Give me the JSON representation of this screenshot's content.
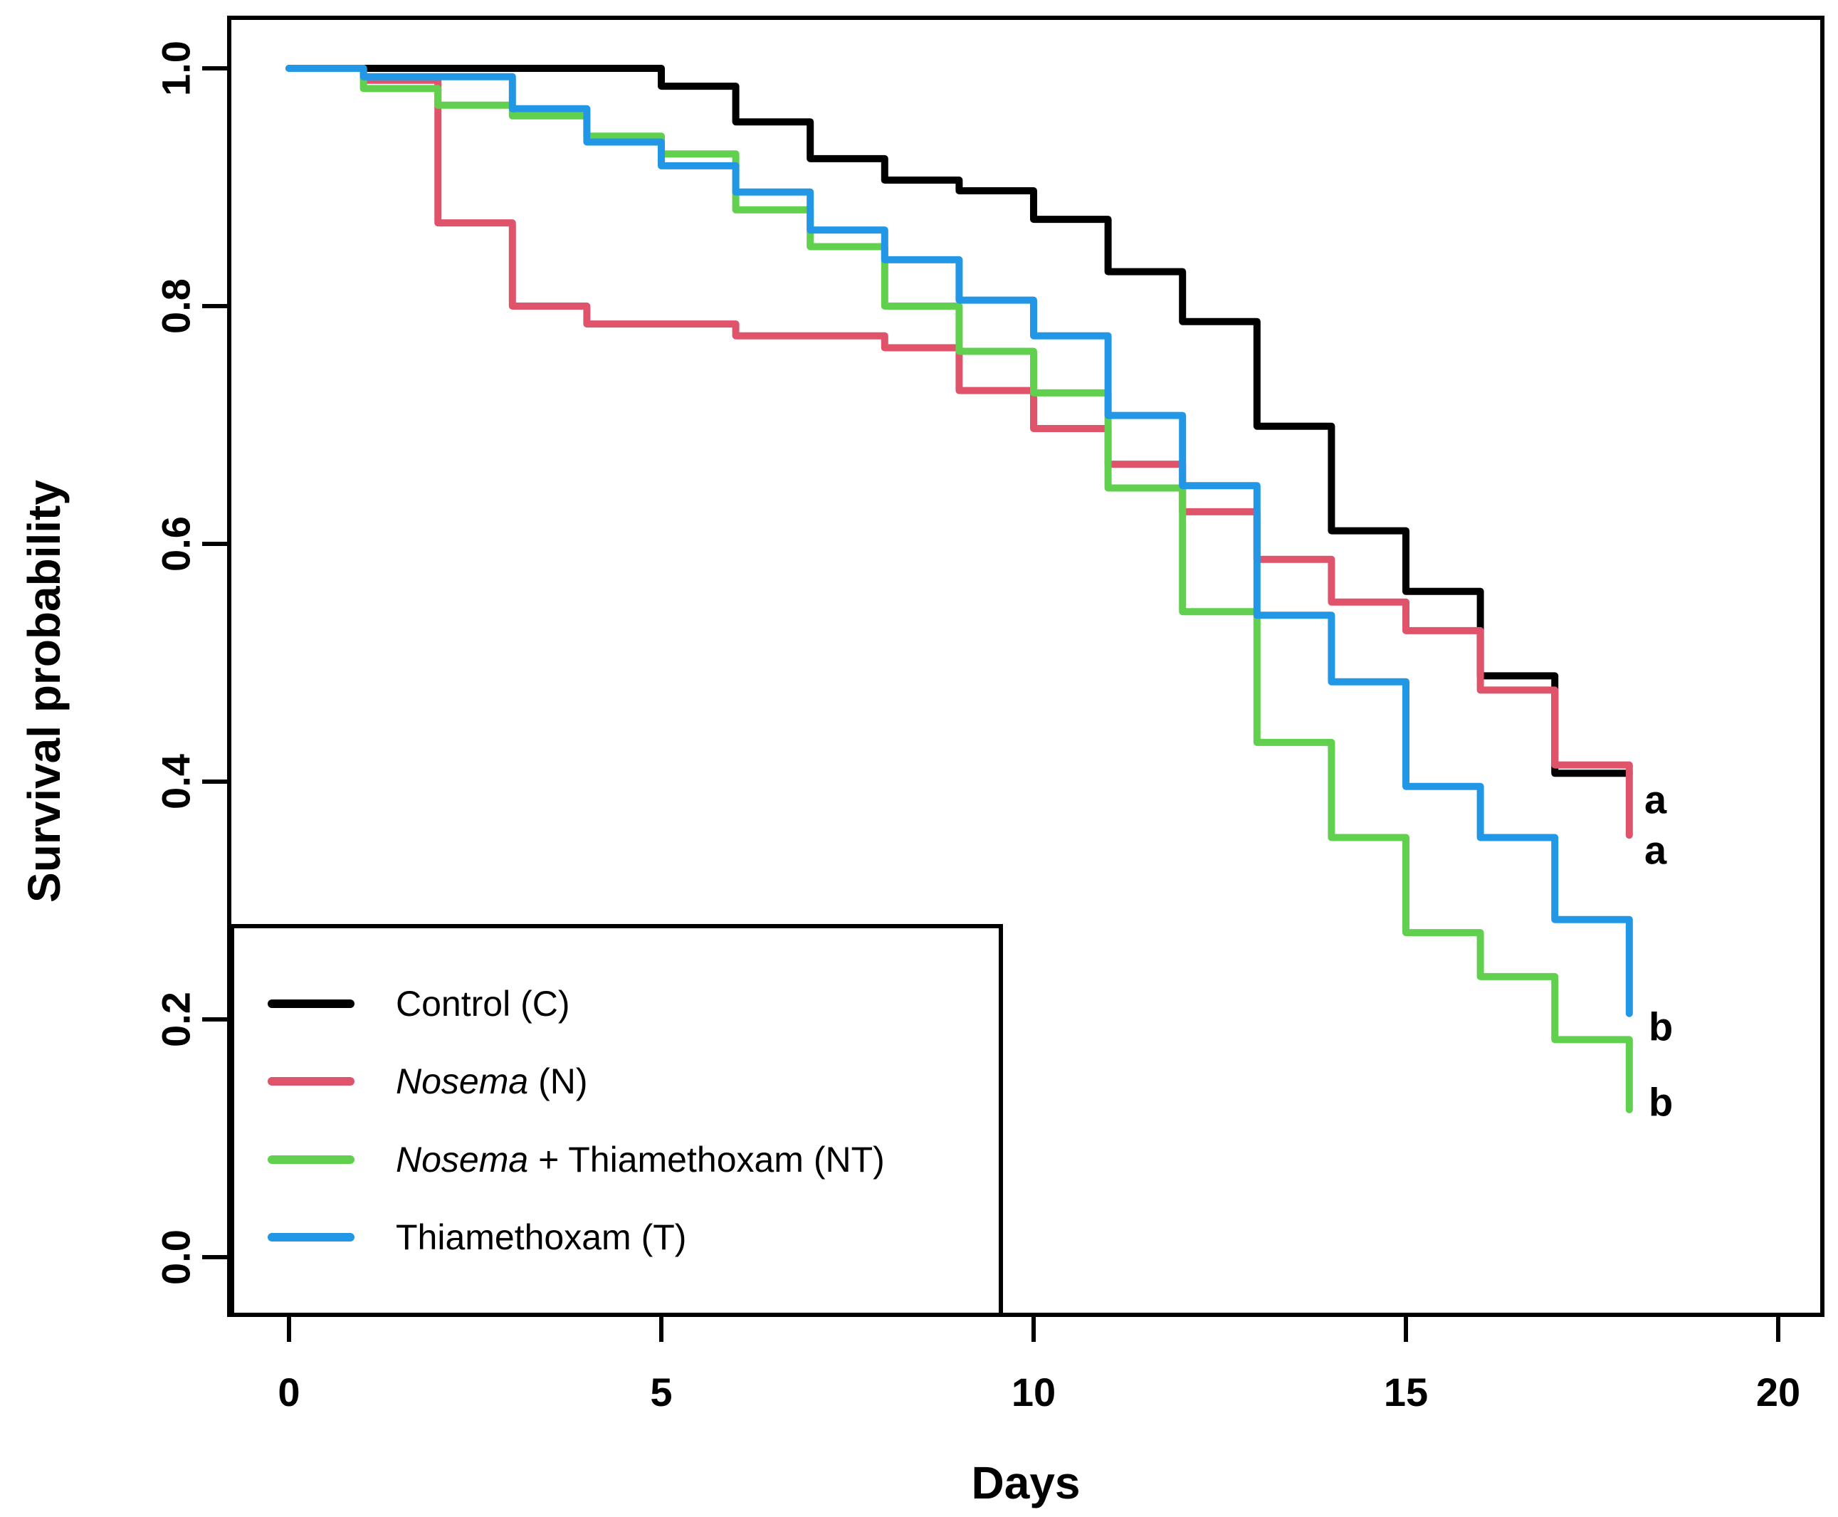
{
  "axes": {
    "x": {
      "title": "Days",
      "tick_labels": [
        "0",
        "5",
        "10",
        "15",
        "20"
      ],
      "range": [
        0,
        20
      ]
    },
    "y": {
      "title": "Survival probability",
      "tick_labels": [
        "0.0",
        "0.2",
        "0.4",
        "0.6",
        "0.8",
        "1.0"
      ],
      "range": [
        0.0,
        1.0
      ]
    }
  },
  "legend": {
    "items": [
      {
        "italic": "",
        "rest": "Control (C)",
        "color": "#000000"
      },
      {
        "italic": "Nosema",
        "rest": " (N)",
        "color": "#DF536B"
      },
      {
        "italic": "Nosema",
        "rest": " + Thiamethoxam (NT)",
        "color": "#61D04F"
      },
      {
        "italic": "",
        "rest": "Thiamethoxam (T)",
        "color": "#2297E6"
      }
    ]
  },
  "annotations": {
    "sig_letters": [
      "a",
      "a",
      "b",
      "b"
    ]
  },
  "chart_data": {
    "type": "line",
    "subtype": "kaplan-meier-step",
    "title": "",
    "xlabel": "Days",
    "ylabel": "Survival probability",
    "xlim": [
      0,
      20
    ],
    "ylim": [
      0.0,
      1.0
    ],
    "grid": false,
    "legend_position": "bottom-left-box",
    "series": [
      {
        "name": "Control (C)",
        "color": "#000000",
        "end_day": 18,
        "sig_letter": "a",
        "steps": [
          [
            0,
            1.0
          ],
          [
            5,
            0.985
          ],
          [
            6,
            0.955
          ],
          [
            7,
            0.924
          ],
          [
            8,
            0.906
          ],
          [
            9,
            0.897
          ],
          [
            10,
            0.873
          ],
          [
            11,
            0.829
          ],
          [
            12,
            0.787
          ],
          [
            13,
            0.699
          ],
          [
            14,
            0.611
          ],
          [
            15,
            0.56
          ],
          [
            16,
            0.489
          ],
          [
            17,
            0.407
          ]
        ]
      },
      {
        "name": "Nosema (N)",
        "color": "#DF536B",
        "end_day": 18,
        "sig_letter": "a",
        "steps": [
          [
            0,
            1.0
          ],
          [
            1,
            0.99
          ],
          [
            2,
            0.87
          ],
          [
            3,
            0.8
          ],
          [
            4,
            0.785
          ],
          [
            6,
            0.775
          ],
          [
            8,
            0.765
          ],
          [
            9,
            0.729
          ],
          [
            10,
            0.697
          ],
          [
            11,
            0.667
          ],
          [
            12,
            0.627
          ],
          [
            13,
            0.587
          ],
          [
            14,
            0.551
          ],
          [
            15,
            0.527
          ],
          [
            16,
            0.477
          ],
          [
            17,
            0.414
          ],
          [
            18,
            0.355
          ]
        ]
      },
      {
        "name": "Nosema + Thiamethoxam (NT)",
        "color": "#61D04F",
        "end_day": 18,
        "sig_letter": "b",
        "steps": [
          [
            0,
            1.0
          ],
          [
            1,
            0.983
          ],
          [
            2,
            0.969
          ],
          [
            3,
            0.96
          ],
          [
            4,
            0.943
          ],
          [
            5,
            0.928
          ],
          [
            6,
            0.881
          ],
          [
            7,
            0.85
          ],
          [
            8,
            0.8
          ],
          [
            9,
            0.762
          ],
          [
            10,
            0.727
          ],
          [
            11,
            0.647
          ],
          [
            12,
            0.543
          ],
          [
            13,
            0.433
          ],
          [
            14,
            0.353
          ],
          [
            15,
            0.273
          ],
          [
            16,
            0.236
          ],
          [
            17,
            0.183
          ],
          [
            18,
            0.124
          ]
        ]
      },
      {
        "name": "Thiamethoxam (T)",
        "color": "#2297E6",
        "end_day": 18,
        "sig_letter": "b",
        "steps": [
          [
            0,
            1.0
          ],
          [
            1,
            0.993
          ],
          [
            3,
            0.966
          ],
          [
            4,
            0.938
          ],
          [
            5,
            0.918
          ],
          [
            6,
            0.896
          ],
          [
            7,
            0.864
          ],
          [
            8,
            0.839
          ],
          [
            9,
            0.805
          ],
          [
            10,
            0.775
          ],
          [
            11,
            0.708
          ],
          [
            12,
            0.649
          ],
          [
            13,
            0.54
          ],
          [
            14,
            0.484
          ],
          [
            15,
            0.396
          ],
          [
            16,
            0.353
          ],
          [
            17,
            0.284
          ],
          [
            18,
            0.205
          ]
        ]
      }
    ]
  }
}
